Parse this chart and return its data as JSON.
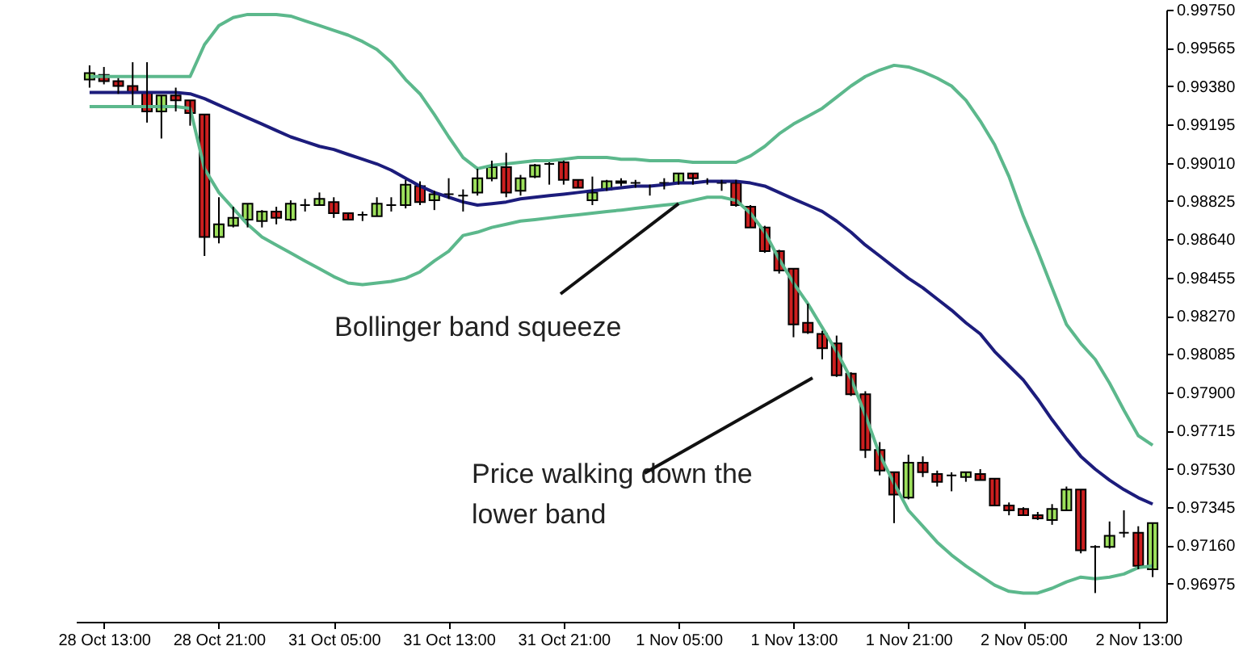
{
  "chart_data": {
    "type": "candlestick",
    "categories": [
      null,
      "28 Oct 13:00",
      null,
      null,
      null,
      null,
      null,
      null,
      null,
      "28 Oct 21:00",
      null,
      null,
      null,
      null,
      null,
      null,
      null,
      "31 Oct 05:00",
      null,
      null,
      null,
      null,
      null,
      null,
      null,
      "31 Oct 13:00",
      null,
      null,
      null,
      null,
      null,
      null,
      null,
      "31 Oct 21:00",
      null,
      null,
      null,
      null,
      null,
      null,
      null,
      "1 Nov 05:00",
      null,
      null,
      null,
      null,
      null,
      null,
      null,
      "1 Nov 13:00",
      null,
      null,
      null,
      null,
      null,
      null,
      null,
      "1 Nov 21:00",
      null,
      null,
      null,
      null,
      null,
      null,
      null,
      "2 Nov 05:00",
      null,
      null,
      null,
      null,
      null,
      null,
      null,
      "2 Nov 13:00",
      null
    ],
    "ohlc": [
      [
        0.99412,
        0.99481,
        0.99373,
        0.99443
      ],
      [
        0.99435,
        0.99473,
        0.99389,
        0.99404
      ],
      [
        0.99404,
        0.99419,
        0.99343,
        0.99381
      ],
      [
        0.99381,
        0.99496,
        0.99289,
        0.9935
      ],
      [
        0.9935,
        0.99496,
        0.99204,
        0.99258
      ],
      [
        0.99258,
        0.99335,
        0.99127,
        0.99335
      ],
      [
        0.99335,
        0.99373,
        0.99258,
        0.99312
      ],
      [
        0.99312,
        0.99312,
        0.99189,
        0.9925
      ],
      [
        0.99243,
        0.99243,
        0.98559,
        0.98651
      ],
      [
        0.98651,
        0.98843,
        0.9862,
        0.98712
      ],
      [
        0.98705,
        0.98797,
        0.98697,
        0.98743
      ],
      [
        0.98735,
        0.98812,
        0.98697,
        0.98812
      ],
      [
        0.98728,
        0.98781,
        0.98697,
        0.98774
      ],
      [
        0.98774,
        0.98797,
        0.98712,
        0.98743
      ],
      [
        0.98735,
        0.98828,
        0.98728,
        0.98812
      ],
      [
        0.98805,
        0.98835,
        0.98774,
        0.98805
      ],
      [
        0.98805,
        0.98866,
        0.98805,
        0.98835
      ],
      [
        0.9882,
        0.98843,
        0.98743,
        0.98766
      ],
      [
        0.98766,
        0.98766,
        0.98735,
        0.98735
      ],
      [
        0.98758,
        0.98774,
        0.98728,
        0.98758
      ],
      [
        0.98751,
        0.98843,
        0.98751,
        0.98812
      ],
      [
        0.98805,
        0.98843,
        0.98774,
        0.98805
      ],
      [
        0.98805,
        0.98927,
        0.98789,
        0.98904
      ],
      [
        0.98897,
        0.9892,
        0.98805,
        0.9882
      ],
      [
        0.98828,
        0.98874,
        0.98781,
        0.98858
      ],
      [
        0.98858,
        0.98935,
        0.98835,
        0.98858
      ],
      [
        0.98851,
        0.98881,
        0.98774,
        0.98851
      ],
      [
        0.98866,
        0.98981,
        0.98851,
        0.98935
      ],
      [
        0.98935,
        0.9902,
        0.9892,
        0.98989
      ],
      [
        0.98989,
        0.99058,
        0.98843,
        0.98866
      ],
      [
        0.98874,
        0.98951,
        0.98851,
        0.98935
      ],
      [
        0.98943,
        0.99004,
        0.98935,
        0.98997
      ],
      [
        0.99004,
        0.99012,
        0.98904,
        0.99004
      ],
      [
        0.99012,
        0.9902,
        0.98904,
        0.98927
      ],
      [
        0.98927,
        0.98927,
        0.98889,
        0.98889
      ],
      [
        0.98828,
        0.98943,
        0.98805,
        0.98866
      ],
      [
        0.98881,
        0.98927,
        0.98874,
        0.9892
      ],
      [
        0.9892,
        0.98935,
        0.98897,
        0.98912
      ],
      [
        0.98912,
        0.98927,
        0.98889,
        0.98912
      ],
      [
        0.98897,
        0.98904,
        0.98851,
        0.98897
      ],
      [
        0.98912,
        0.98935,
        0.98881,
        0.98912
      ],
      [
        0.98912,
        0.98958,
        0.98904,
        0.98958
      ],
      [
        0.98958,
        0.98958,
        0.98904,
        0.98935
      ],
      [
        0.9892,
        0.98935,
        0.98904,
        0.9892
      ],
      [
        0.98912,
        0.98927,
        0.98874,
        0.98912
      ],
      [
        0.98912,
        0.98927,
        0.98797,
        0.98805
      ],
      [
        0.98797,
        0.98805,
        0.98697,
        0.98697
      ],
      [
        0.98697,
        0.98705,
        0.98574,
        0.98582
      ],
      [
        0.98582,
        0.98589,
        0.98474,
        0.98489
      ],
      [
        0.98497,
        0.98497,
        0.98166,
        0.98228
      ],
      [
        0.98236,
        0.98328,
        0.98182,
        0.9819
      ],
      [
        0.98182,
        0.98197,
        0.98059,
        0.98113
      ],
      [
        0.98136,
        0.98174,
        0.97974,
        0.97982
      ],
      [
        0.9799,
        0.97997,
        0.97882,
        0.9789
      ],
      [
        0.9789,
        0.97905,
        0.97582,
        0.97621
      ],
      [
        0.97621,
        0.97659,
        0.97498,
        0.97521
      ],
      [
        0.97513,
        0.97513,
        0.97267,
        0.97405
      ],
      [
        0.9739,
        0.97598,
        0.97382,
        0.97559
      ],
      [
        0.97559,
        0.9759,
        0.9749,
        0.97513
      ],
      [
        0.97505,
        0.97521,
        0.97444,
        0.97467
      ],
      [
        0.97498,
        0.97513,
        0.97421,
        0.97498
      ],
      [
        0.9749,
        0.97513,
        0.97467,
        0.97513
      ],
      [
        0.97505,
        0.97528,
        0.97475,
        0.97475
      ],
      [
        0.97482,
        0.97482,
        0.97352,
        0.97352
      ],
      [
        0.97352,
        0.97367,
        0.97305,
        0.97329
      ],
      [
        0.97336,
        0.97344,
        0.97305,
        0.97305
      ],
      [
        0.97305,
        0.97321,
        0.97282,
        0.9729
      ],
      [
        0.97282,
        0.97359,
        0.97259,
        0.97336
      ],
      [
        0.97329,
        0.97444,
        0.97329,
        0.97429
      ],
      [
        0.97429,
        0.97429,
        0.97121,
        0.97136
      ],
      [
        0.97152,
        0.9716,
        0.96929,
        0.97152
      ],
      [
        0.97152,
        0.97275,
        0.97144,
        0.97206
      ],
      [
        0.97221,
        0.97329,
        0.97198,
        0.97221
      ],
      [
        0.97221,
        0.97252,
        0.97044,
        0.9706
      ],
      [
        0.97044,
        0.97267,
        0.97006,
        0.97267
      ]
    ],
    "colors": [
      "#9de05c",
      "#cc1f1f",
      "#cc1f1f",
      "#cc1f1f",
      "#cc1f1f",
      "#9de05c",
      "#cc1f1f",
      "#cc1f1f",
      "#cc1f1f",
      "#9de05c",
      "#9de05c",
      "#9de05c",
      "#9de05c",
      "#cc1f1f",
      "#9de05c",
      "#000000",
      "#9de05c",
      "#cc1f1f",
      "#cc1f1f",
      "#000000",
      "#9de05c",
      "#000000",
      "#9de05c",
      "#cc1f1f",
      "#9de05c",
      "#000000",
      "#000000",
      "#9de05c",
      "#9de05c",
      "#cc1f1f",
      "#9de05c",
      "#9de05c",
      "#000000",
      "#cc1f1f",
      "#cc1f1f",
      "#9de05c",
      "#9de05c",
      "#cc1f1f",
      "#000000",
      "#000000",
      "#000000",
      "#9de05c",
      "#cc1f1f",
      "#000000",
      "#000000",
      "#cc1f1f",
      "#cc1f1f",
      "#cc1f1f",
      "#cc1f1f",
      "#cc1f1f",
      "#cc1f1f",
      "#cc1f1f",
      "#cc1f1f",
      "#cc1f1f",
      "#cc1f1f",
      "#cc1f1f",
      "#cc1f1f",
      "#9de05c",
      "#cc1f1f",
      "#cc1f1f",
      "#000000",
      "#9de05c",
      "#cc1f1f",
      "#cc1f1f",
      "#cc1f1f",
      "#cc1f1f",
      "#cc1f1f",
      "#9de05c",
      "#9de05c",
      "#cc1f1f",
      "#000000",
      "#9de05c",
      "#000000",
      "#cc1f1f",
      "#9de05c"
    ],
    "series": [
      {
        "type": "line",
        "color": "#5cb88c",
        "values": [
          0.99427,
          0.99427,
          0.99427,
          0.99427,
          0.99427,
          0.99427,
          0.99427,
          0.99427,
          0.99581,
          0.99673,
          0.99712,
          0.99727,
          0.99727,
          0.99727,
          0.99719,
          0.99696,
          0.99673,
          0.9965,
          0.99627,
          0.99596,
          0.99558,
          0.99496,
          0.99412,
          0.99343,
          0.99243,
          0.99135,
          0.99035,
          0.98981,
          0.98997,
          0.99004,
          0.99012,
          0.9902,
          0.9902,
          0.99027,
          0.99035,
          0.99035,
          0.99035,
          0.99027,
          0.99027,
          0.9902,
          0.9902,
          0.9902,
          0.99012,
          0.99012,
          0.99012,
          0.99012,
          0.99043,
          0.99089,
          0.9915,
          0.99197,
          0.99235,
          0.99273,
          0.99327,
          0.99381,
          0.99427,
          0.99458,
          0.99481,
          0.99473,
          0.9945,
          0.99419,
          0.99381,
          0.99312,
          0.99212,
          0.99097,
          0.98943,
          0.98751,
          0.98582,
          0.98405,
          0.98228,
          0.98136,
          0.98059,
          0.97944,
          0.97813,
          0.9769,
          0.97644
        ]
      },
      {
        "type": "line",
        "color": "#1c1c7c",
        "values": [
          0.9935,
          0.9935,
          0.9935,
          0.9935,
          0.9935,
          0.9935,
          0.9935,
          0.99343,
          0.9932,
          0.99289,
          0.99258,
          0.99227,
          0.99197,
          0.99166,
          0.99135,
          0.99112,
          0.99089,
          0.99074,
          0.9905,
          0.99027,
          0.99004,
          0.98974,
          0.98935,
          0.98897,
          0.98866,
          0.98843,
          0.9882,
          0.98805,
          0.98812,
          0.9882,
          0.98835,
          0.98843,
          0.98851,
          0.98858,
          0.98866,
          0.98874,
          0.98881,
          0.98889,
          0.98897,
          0.98897,
          0.98904,
          0.98912,
          0.98912,
          0.9892,
          0.9892,
          0.9892,
          0.98912,
          0.98897,
          0.98866,
          0.98835,
          0.98805,
          0.98774,
          0.98728,
          0.98674,
          0.98612,
          0.98559,
          0.98505,
          0.98451,
          0.98405,
          0.98351,
          0.98297,
          0.98236,
          0.98182,
          0.98097,
          0.98028,
          0.97959,
          0.97867,
          0.97767,
          0.97675,
          0.9759,
          0.97528,
          0.97475,
          0.97429,
          0.9739,
          0.97359
        ]
      },
      {
        "type": "line",
        "color": "#5cb88c",
        "values": [
          0.99281,
          0.99281,
          0.99281,
          0.99281,
          0.99281,
          0.99281,
          0.99281,
          0.99273,
          0.98981,
          0.98866,
          0.98789,
          0.98712,
          0.98651,
          0.98612,
          0.98574,
          0.98535,
          0.98497,
          0.98459,
          0.98428,
          0.9842,
          0.98428,
          0.98436,
          0.98451,
          0.98482,
          0.98535,
          0.98582,
          0.98658,
          0.98674,
          0.98697,
          0.98712,
          0.98728,
          0.98735,
          0.98743,
          0.98751,
          0.98758,
          0.98766,
          0.98774,
          0.98781,
          0.98789,
          0.98797,
          0.98805,
          0.98812,
          0.98828,
          0.98843,
          0.98843,
          0.98828,
          0.98766,
          0.98674,
          0.98543,
          0.98428,
          0.98328,
          0.98213,
          0.98097,
          0.97966,
          0.9779,
          0.97598,
          0.97459,
          0.97329,
          0.97252,
          0.97175,
          0.97113,
          0.9706,
          0.97013,
          0.96967,
          0.96937,
          0.96929,
          0.96929,
          0.96952,
          0.96983,
          0.97006,
          0.96998,
          0.97006,
          0.97021,
          0.97052,
          0.9706
        ]
      }
    ],
    "ylim": [
      0.9679,
      0.9975
    ],
    "yticks": [
      {
        "value": 0.9975,
        "label": "0.99750"
      },
      {
        "value": 0.99565,
        "label": "0.99565"
      },
      {
        "value": 0.9938,
        "label": "0.99380"
      },
      {
        "value": 0.99195,
        "label": "0.99195"
      },
      {
        "value": 0.9901,
        "label": "0.99010"
      },
      {
        "value": 0.98825,
        "label": "0.98825"
      },
      {
        "value": 0.9864,
        "label": "0.98640"
      },
      {
        "value": 0.98455,
        "label": "0.98455"
      },
      {
        "value": 0.9827,
        "label": "0.98270"
      },
      {
        "value": 0.98085,
        "label": "0.98085"
      },
      {
        "value": 0.979,
        "label": "0.97900"
      },
      {
        "value": 0.97715,
        "label": "0.97715"
      },
      {
        "value": 0.9753,
        "label": "0.97530"
      },
      {
        "value": 0.97345,
        "label": "0.97345"
      },
      {
        "value": 0.9716,
        "label": "0.97160"
      },
      {
        "value": 0.96975,
        "label": "0.96975"
      }
    ],
    "annotations": [
      {
        "text": "Bollinger band squeeze",
        "x": "1 Nov 05:00",
        "y": 0.98812
      },
      "Price walking down the\nlower band"
    ]
  }
}
